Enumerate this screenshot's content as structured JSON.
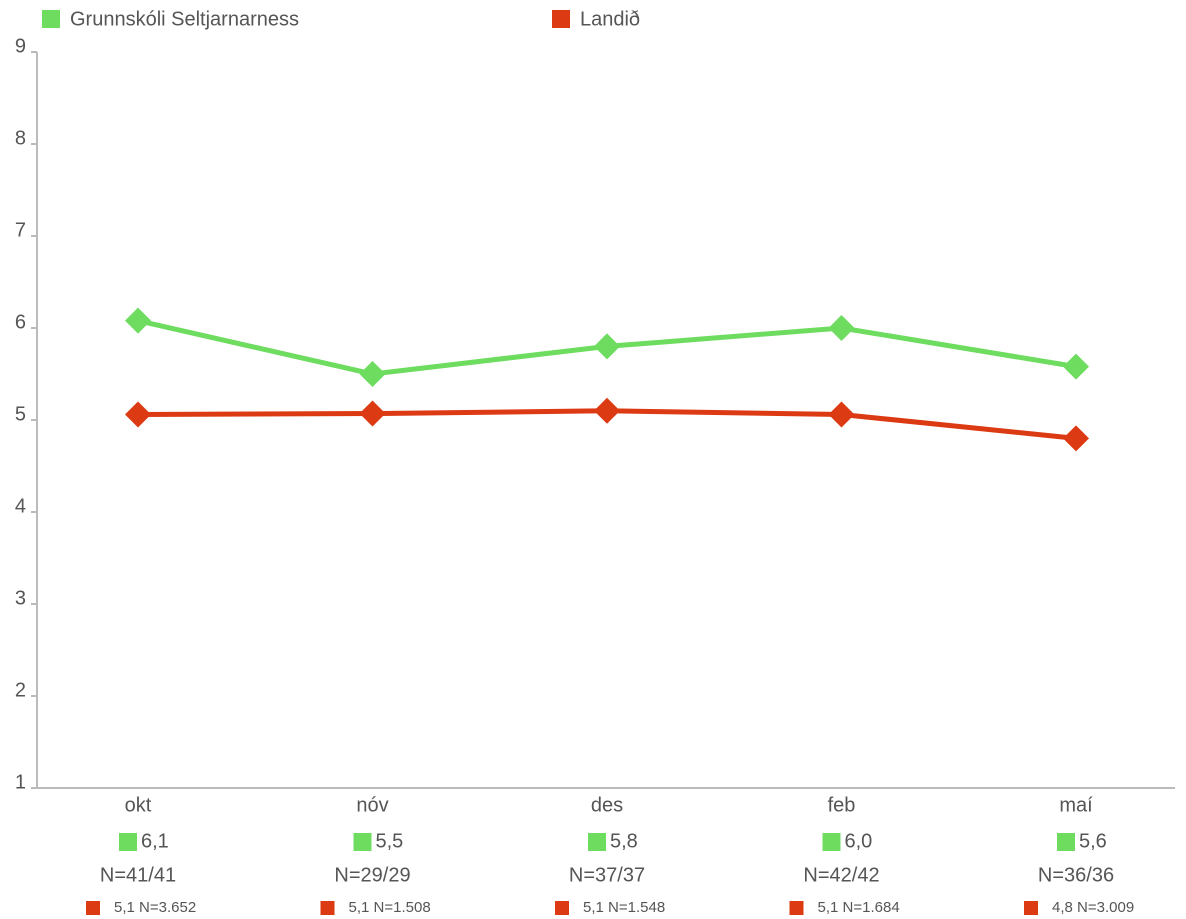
{
  "chart_data": {
    "type": "line",
    "categories": [
      "okt",
      "nóv",
      "des",
      "feb",
      "maí"
    ],
    "series": [
      {
        "name": "Grunnskóli Seltjarnarness",
        "color": "#6ddc5f",
        "values": [
          6.08,
          5.5,
          5.8,
          6.0,
          5.58
        ],
        "value_labels": [
          "6,1",
          "5,5",
          "5,8",
          "6,0",
          "5,6"
        ],
        "n_labels": [
          "N=41/41",
          "N=29/29",
          "N=37/37",
          "N=42/42",
          "N=36/36"
        ]
      },
      {
        "name": "Landið",
        "color": "#dc3a12",
        "values": [
          5.06,
          5.07,
          5.1,
          5.06,
          4.8
        ],
        "value_labels": [
          "5,1",
          "5,1",
          "5,1",
          "5,1",
          "4,8"
        ],
        "n_labels": [
          "N=3.652",
          "N=1.508",
          "N=1.548",
          "N=1.684",
          "N=3.009"
        ]
      }
    ],
    "ylim": [
      1,
      9
    ],
    "yticks": [
      1,
      2,
      3,
      4,
      5,
      6,
      7,
      8,
      9
    ],
    "grid": false,
    "legend": "top"
  }
}
